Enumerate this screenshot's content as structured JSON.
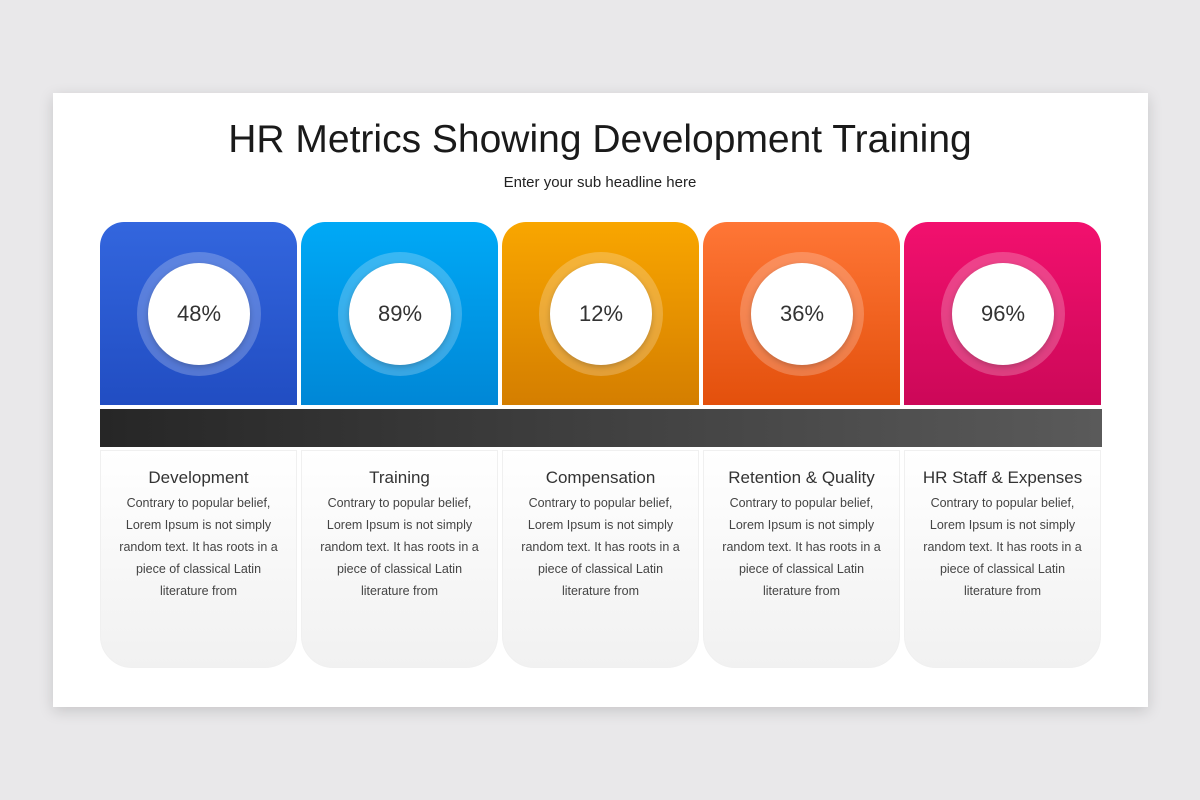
{
  "title": "HR Metrics Showing Development Training",
  "subtitle": "Enter your sub headline here",
  "cards": [
    {
      "percent": "48%",
      "heading": "Development",
      "text": "Contrary to popular belief, Lorem Ipsum is not simply random text.  It has roots in a piece of classical Latin literature from",
      "color_top": "#3366de",
      "color_bottom": "#214dc2"
    },
    {
      "percent": "89%",
      "heading": "Training",
      "text": "Contrary to popular belief, Lorem Ipsum is not simply random text.  It has roots in a piece of classical Latin literature from",
      "color_top": "#00a9f6",
      "color_bottom": "#0087d6"
    },
    {
      "percent": "12%",
      "heading": "Compensation",
      "text": "Contrary to popular belief, Lorem Ipsum is not simply random text.  It has roots in a piece of classical Latin literature from",
      "color_top": "#f9a600",
      "color_bottom": "#d47e00"
    },
    {
      "percent": "36%",
      "heading": "Retention & Quality",
      "text": "Contrary to popular belief, Lorem Ipsum is not simply random text.  It has roots in a piece of classical Latin literature from",
      "color_top": "#ff7636",
      "color_bottom": "#e3500c"
    },
    {
      "percent": "96%",
      "heading": "HR Staff & Expenses",
      "text": "Contrary to popular belief, Lorem Ipsum is not simply random text.  It has roots in a piece of classical Latin literature from",
      "color_top": "#f2106e",
      "color_bottom": "#cc0858"
    }
  ]
}
